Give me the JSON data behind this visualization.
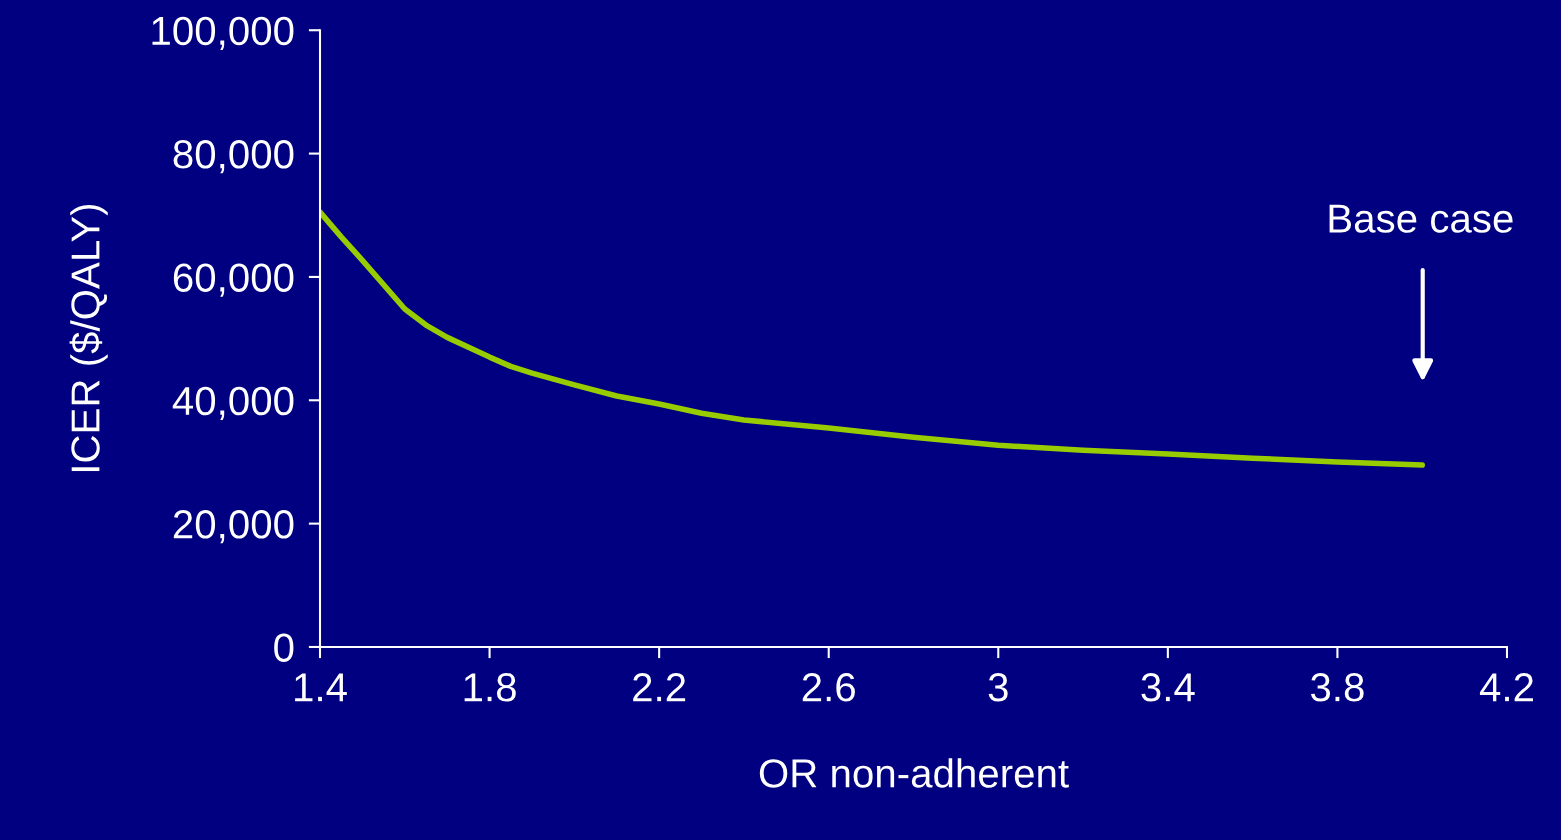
{
  "chart_data": {
    "type": "line",
    "xlabel": "OR non-adherent",
    "ylabel": "ICER ($/QALY)",
    "x": [
      1.4,
      1.45,
      1.5,
      1.6,
      1.65,
      1.7,
      1.8,
      1.85,
      1.9,
      2.0,
      2.1,
      2.2,
      2.3,
      2.4,
      2.6,
      2.8,
      3.0,
      3.2,
      3.4,
      3.6,
      3.8,
      4.0
    ],
    "series": [
      {
        "color": "#99cc00",
        "values": [
          70500,
          66500,
          62700,
          54800,
          52200,
          50200,
          47000,
          45500,
          44400,
          42500,
          40700,
          39400,
          37900,
          36800,
          35500,
          34000,
          32700,
          31900,
          31300,
          30600,
          30000,
          29500
        ]
      }
    ],
    "xlim": [
      1.4,
      4.2
    ],
    "xticks": [
      1.4,
      1.8,
      2.2,
      2.6,
      3,
      3.4,
      3.8,
      4.2
    ],
    "ylim": [
      0,
      100000
    ],
    "yticks": [
      {
        "value": 0,
        "label": "0"
      },
      {
        "value": 20000,
        "label": "20,000"
      },
      {
        "value": 40000,
        "label": "40,000"
      },
      {
        "value": 60000,
        "label": "60,000"
      },
      {
        "value": 80000,
        "label": "80,000"
      },
      {
        "value": 100000,
        "label": "100,000"
      }
    ],
    "annotations": [
      "Base case"
    ],
    "grid": false,
    "legend": false,
    "marker": "none",
    "line_style": "solid"
  }
}
